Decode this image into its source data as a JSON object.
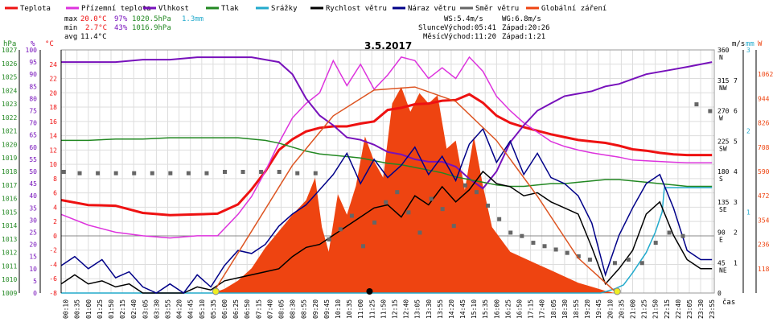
{
  "title": "3.5.2017",
  "legend": [
    {
      "label": "Teplota",
      "color": "#ee1111"
    },
    {
      "label": "Přízemní teplota",
      "color": "#dd33dd"
    },
    {
      "label": "Vlhkost",
      "color": "#7711bb"
    },
    {
      "label": "Tlak",
      "color": "#228822"
    },
    {
      "label": "Srážky",
      "color": "#22aacc"
    },
    {
      "label": "Rychlost větru",
      "color": "#000000"
    },
    {
      "label": "Náraz větru",
      "color": "#000088"
    },
    {
      "label": "Směr větru",
      "color": "#666666"
    },
    {
      "label": "Globální záření",
      "color": "#ee4411"
    }
  ],
  "stats": {
    "max": {
      "label": "max",
      "temp": "20.0°C",
      "hum": "97%",
      "pres": "1020.5hPa",
      "rain": "1.3mm"
    },
    "min": {
      "label": "min",
      "temp": "2.7°C",
      "hum": "43%",
      "pres": "1016.9hPa"
    },
    "avg": {
      "label": "avg",
      "temp": "11.4°C"
    }
  },
  "wind_info": {
    "ws": "WS:5.4m/s",
    "wg": "WG:6.8m/s"
  },
  "sun": {
    "label": "Slunce",
    "rise": "Východ:05:41",
    "set": "Západ:20:26"
  },
  "moon": {
    "label": "Měsíc",
    "rise": "Východ:11:20",
    "set": "Západ:1:21"
  },
  "axis_units": {
    "hpa": "hPa",
    "pct": "%",
    "degc": "°C",
    "ms": "m/s",
    "mm": "mm",
    "w": "W",
    "cas": "čas"
  },
  "colors": {
    "pressure": "#228822",
    "humidity": "#7711bb",
    "temp": "#ee1111",
    "rain": "#22aacc",
    "rad": "#ee4411",
    "wind": "#000000",
    "gust": "#000088",
    "dir": "#666666",
    "grid": "#dddddd",
    "zero": "#888888"
  },
  "chart_data": {
    "type": "line",
    "x_start": "00:00",
    "x_end": "24:00",
    "x_tick_labels": [
      "00:10",
      "00:35",
      "01:00",
      "01:25",
      "01:50",
      "02:15",
      "02:40",
      "03:05",
      "03:30",
      "03:55",
      "04:20",
      "04:45",
      "05:10",
      "05:35",
      "06:00",
      "06:25",
      "06:50",
      "07:15",
      "07:40",
      "08:05",
      "08:30",
      "08:55",
      "09:20",
      "09:45",
      "10:10",
      "10:35",
      "11:00",
      "11:25",
      "11:50",
      "12:15",
      "12:40",
      "13:05",
      "13:30",
      "13:55",
      "14:20",
      "14:45",
      "15:10",
      "15:35",
      "16:00",
      "16:25",
      "16:50",
      "17:15",
      "17:40",
      "18:05",
      "18:30",
      "18:55",
      "19:20",
      "19:45",
      "20:10",
      "20:35",
      "21:00",
      "21:25",
      "21:50",
      "22:15",
      "22:40",
      "23:05",
      "23:30",
      "23:55"
    ],
    "y_axes": {
      "pressure_hpa": {
        "min": 1009,
        "max": 1027,
        "ticks": [
          1009,
          1010,
          1011,
          1012,
          1013,
          1014,
          1015,
          1016,
          1017,
          1018,
          1019,
          1020,
          1021,
          1022,
          1023,
          1024,
          1025,
          1026,
          1027
        ]
      },
      "humidity_pct": {
        "min": 0,
        "max": 100,
        "ticks": [
          0,
          5,
          10,
          15,
          20,
          25,
          30,
          35,
          40,
          45,
          50,
          55,
          60,
          65,
          70,
          75,
          80,
          85,
          90,
          95,
          100
        ]
      },
      "temperature_c": {
        "min": -8,
        "max": 26,
        "ticks": [
          -8,
          -6,
          -4,
          -2,
          0,
          2,
          4,
          6,
          8,
          10,
          12,
          14,
          16,
          18,
          20,
          22,
          24
        ]
      },
      "wind_dir": {
        "min": 0,
        "max": 360,
        "ticks": [
          {
            "v": 0,
            "l": "0"
          },
          {
            "v": 45,
            "l": "45 NE"
          },
          {
            "v": 90,
            "l": "90 E"
          },
          {
            "v": 135,
            "l": "135 SE"
          },
          {
            "v": 180,
            "l": "180 S"
          },
          {
            "v": 225,
            "l": "225 SW"
          },
          {
            "v": 270,
            "l": "270 W"
          },
          {
            "v": 315,
            "l": "315 NW"
          },
          {
            "v": 360,
            "l": "360 N"
          }
        ]
      },
      "wind_ms": {
        "min": 0,
        "max": 8,
        "ticks": [
          1,
          2,
          3,
          4,
          5,
          6,
          7
        ]
      },
      "rain_mm": {
        "min": 0,
        "max": 3,
        "ticks": [
          1,
          2,
          3
        ]
      },
      "radiation_w": {
        "min": 0,
        "max": 1180,
        "ticks": [
          118,
          236,
          354,
          472,
          590,
          708,
          826,
          944,
          1062
        ]
      }
    },
    "series": [
      {
        "name": "Teplota",
        "axis": "temperature_c",
        "x": [
          "00:00",
          "01:00",
          "02:00",
          "03:00",
          "04:00",
          "05:00",
          "05:45",
          "06:30",
          "07:00",
          "07:30",
          "08:00",
          "08:30",
          "09:00",
          "09:30",
          "10:00",
          "10:30",
          "11:00",
          "11:30",
          "12:00",
          "12:30",
          "13:00",
          "13:30",
          "14:00",
          "14:30",
          "15:00",
          "15:30",
          "16:00",
          "16:30",
          "17:00",
          "17:30",
          "18:00",
          "18:30",
          "19:00",
          "19:30",
          "20:00",
          "20:30",
          "21:00",
          "21:30",
          "22:00",
          "22:30",
          "23:00",
          "23:55"
        ],
        "y": [
          5.0,
          4.3,
          4.2,
          3.2,
          2.9,
          3.0,
          3.1,
          4.4,
          6.5,
          9.0,
          12.0,
          13.5,
          14.6,
          15.1,
          15.3,
          15.3,
          15.7,
          16.0,
          17.6,
          17.9,
          18.4,
          18.5,
          18.9,
          19.0,
          19.8,
          18.6,
          16.8,
          15.8,
          15.2,
          14.7,
          14.2,
          13.8,
          13.4,
          13.2,
          13.0,
          12.6,
          12.1,
          11.9,
          11.6,
          11.4,
          11.3,
          11.3
        ]
      },
      {
        "name": "Přízemní teplota",
        "axis": "temperature_c",
        "x": [
          "00:00",
          "01:00",
          "02:00",
          "03:00",
          "04:00",
          "05:00",
          "05:45",
          "06:30",
          "07:00",
          "07:30",
          "08:00",
          "08:30",
          "09:00",
          "09:30",
          "10:00",
          "10:30",
          "11:00",
          "11:30",
          "12:00",
          "12:30",
          "13:00",
          "13:30",
          "14:00",
          "14:30",
          "15:00",
          "15:30",
          "16:00",
          "16:30",
          "17:00",
          "17:30",
          "18:00",
          "18:30",
          "19:00",
          "19:30",
          "20:00",
          "20:30",
          "21:00",
          "21:30",
          "22:00",
          "22:30",
          "23:00",
          "23:55"
        ],
        "y": [
          3.0,
          1.5,
          0.5,
          0.0,
          -0.3,
          0.0,
          0.0,
          3.0,
          5.5,
          9.0,
          13.0,
          16.5,
          18.5,
          20.0,
          24.5,
          21.0,
          24.0,
          20.5,
          22.5,
          25.0,
          24.5,
          22.0,
          23.5,
          22.0,
          25.0,
          23.0,
          19.5,
          17.5,
          15.8,
          14.5,
          13.2,
          12.5,
          12.0,
          11.6,
          11.3,
          11.0,
          10.6,
          10.5,
          10.4,
          10.3,
          10.2,
          10.2
        ]
      },
      {
        "name": "Vlhkost",
        "axis": "humidity_pct",
        "x": [
          "00:00",
          "01:00",
          "02:00",
          "03:00",
          "04:00",
          "05:00",
          "05:45",
          "06:30",
          "07:00",
          "07:30",
          "08:00",
          "08:30",
          "09:00",
          "09:30",
          "10:00",
          "10:30",
          "11:00",
          "11:30",
          "12:00",
          "12:30",
          "13:00",
          "13:30",
          "14:00",
          "14:30",
          "15:00",
          "15:30",
          "16:00",
          "16:30",
          "17:00",
          "17:30",
          "18:00",
          "18:30",
          "19:00",
          "19:30",
          "20:00",
          "20:30",
          "21:00",
          "21:30",
          "22:00",
          "22:30",
          "23:00",
          "23:55"
        ],
        "y": [
          95,
          95,
          95,
          96,
          96,
          97,
          97,
          97,
          97,
          96,
          95,
          90,
          80,
          73,
          69,
          64,
          63,
          61,
          58,
          57,
          55,
          54,
          54,
          52,
          47,
          43,
          50,
          62,
          69,
          75,
          78,
          81,
          82,
          83,
          85,
          86,
          88,
          90,
          91,
          92,
          93,
          95
        ]
      },
      {
        "name": "Tlak",
        "axis": "pressure_hpa",
        "x": [
          "00:00",
          "01:00",
          "02:00",
          "03:00",
          "04:00",
          "05:00",
          "05:45",
          "06:30",
          "07:00",
          "07:30",
          "08:00",
          "08:30",
          "09:00",
          "09:30",
          "10:00",
          "10:30",
          "11:00",
          "11:30",
          "12:00",
          "12:30",
          "13:00",
          "13:30",
          "14:00",
          "14:30",
          "15:00",
          "15:30",
          "16:00",
          "16:30",
          "17:00",
          "17:30",
          "18:00",
          "18:30",
          "19:00",
          "19:30",
          "20:00",
          "20:30",
          "21:00",
          "21:30",
          "22:00",
          "22:30",
          "23:00",
          "23:55"
        ],
        "y": [
          1020.3,
          1020.3,
          1020.4,
          1020.4,
          1020.5,
          1020.5,
          1020.5,
          1020.5,
          1020.4,
          1020.3,
          1020.1,
          1019.8,
          1019.5,
          1019.3,
          1019.2,
          1019.1,
          1019.0,
          1018.8,
          1018.6,
          1018.5,
          1018.3,
          1018.1,
          1017.9,
          1017.6,
          1017.4,
          1017.2,
          1017.0,
          1016.9,
          1016.9,
          1017.0,
          1017.1,
          1017.1,
          1017.2,
          1017.3,
          1017.4,
          1017.4,
          1017.3,
          1017.2,
          1017.1,
          1017.0,
          1016.9,
          1016.9
        ]
      },
      {
        "name": "Srážky",
        "axis": "rain_mm",
        "x": [
          "00:00",
          "19:50",
          "20:20",
          "20:40",
          "21:00",
          "21:30",
          "21:50",
          "22:05",
          "22:10",
          "23:55"
        ],
        "y": [
          0,
          0,
          0.05,
          0.1,
          0.25,
          0.5,
          0.75,
          1.0,
          1.3,
          1.3
        ]
      },
      {
        "name": "Rychlost větru",
        "axis": "wind_ms",
        "x": [
          "00:00",
          "00:30",
          "01:00",
          "01:30",
          "02:00",
          "02:30",
          "03:00",
          "03:30",
          "04:00",
          "04:30",
          "05:00",
          "05:30",
          "06:00",
          "06:30",
          "07:00",
          "07:30",
          "08:00",
          "08:30",
          "09:00",
          "09:30",
          "10:00",
          "10:30",
          "11:00",
          "11:30",
          "12:00",
          "12:30",
          "13:00",
          "13:30",
          "14:00",
          "14:30",
          "15:00",
          "15:30",
          "16:00",
          "16:30",
          "17:00",
          "17:30",
          "18:00",
          "18:30",
          "19:00",
          "19:30",
          "20:00",
          "20:30",
          "21:00",
          "21:30",
          "22:00",
          "22:30",
          "23:00",
          "23:30",
          "23:55"
        ],
        "y": [
          0.3,
          0.6,
          0.3,
          0.4,
          0.2,
          0.3,
          0.0,
          0.0,
          0.0,
          0.0,
          0.2,
          0.1,
          0.4,
          0.5,
          0.6,
          0.7,
          0.8,
          1.2,
          1.5,
          1.6,
          1.9,
          2.2,
          2.5,
          2.8,
          2.9,
          2.5,
          3.2,
          2.9,
          3.5,
          3.0,
          3.4,
          4.0,
          3.6,
          3.5,
          3.2,
          3.3,
          3.0,
          2.8,
          2.6,
          1.5,
          0.3,
          0.8,
          1.4,
          2.6,
          3.0,
          1.9,
          1.1,
          0.8,
          0.8
        ]
      },
      {
        "name": "Náraz větru",
        "axis": "wind_ms",
        "x": [
          "00:00",
          "00:30",
          "01:00",
          "01:30",
          "02:00",
          "02:30",
          "03:00",
          "03:30",
          "04:00",
          "04:30",
          "05:00",
          "05:30",
          "06:00",
          "06:30",
          "07:00",
          "07:30",
          "08:00",
          "08:30",
          "09:00",
          "09:30",
          "10:00",
          "10:30",
          "11:00",
          "11:30",
          "12:00",
          "12:30",
          "13:00",
          "13:30",
          "14:00",
          "14:30",
          "15:00",
          "15:30",
          "16:00",
          "16:30",
          "17:00",
          "17:30",
          "18:00",
          "18:30",
          "19:00",
          "19:30",
          "20:00",
          "20:30",
          "21:00",
          "21:30",
          "22:00",
          "22:30",
          "23:00",
          "23:30",
          "23:55"
        ],
        "y": [
          0.9,
          1.2,
          0.8,
          1.1,
          0.5,
          0.7,
          0.2,
          0.0,
          0.3,
          0.0,
          0.6,
          0.2,
          0.9,
          1.4,
          1.3,
          1.6,
          2.2,
          2.6,
          2.9,
          3.4,
          3.9,
          4.6,
          3.6,
          4.4,
          3.8,
          4.2,
          4.8,
          3.9,
          4.5,
          3.7,
          4.9,
          5.4,
          4.3,
          5.0,
          3.9,
          4.6,
          3.8,
          3.6,
          3.2,
          2.3,
          0.6,
          1.9,
          2.8,
          3.6,
          3.9,
          2.8,
          1.4,
          1.1,
          1.1
        ]
      },
      {
        "name": "Směr větru",
        "axis": "wind_dir",
        "type": "scatter",
        "x": [
          "00:05",
          "00:40",
          "01:20",
          "02:00",
          "02:40",
          "03:20",
          "04:00",
          "04:40",
          "05:20",
          "06:00",
          "06:40",
          "07:20",
          "08:00",
          "08:40",
          "09:20",
          "09:50",
          "10:15",
          "10:40",
          "11:05",
          "11:30",
          "11:55",
          "12:20",
          "12:45",
          "13:10",
          "13:35",
          "14:00",
          "14:25",
          "14:50",
          "15:15",
          "15:40",
          "16:05",
          "16:30",
          "16:55",
          "17:20",
          "17:45",
          "18:10",
          "18:35",
          "19:00",
          "19:25",
          "20:20",
          "20:50",
          "21:20",
          "21:50",
          "22:20",
          "22:50",
          "23:20",
          "23:50"
        ],
        "y": [
          180,
          178,
          178,
          178,
          178,
          178,
          178,
          178,
          178,
          180,
          180,
          180,
          180,
          178,
          178,
          80,
          95,
          115,
          70,
          105,
          135,
          150,
          120,
          90,
          140,
          125,
          100,
          160,
          150,
          130,
          110,
          90,
          85,
          75,
          70,
          65,
          60,
          55,
          50,
          45,
          50,
          45,
          75,
          90,
          85,
          280,
          270
        ]
      },
      {
        "name": "Globální záření",
        "axis": "radiation_w",
        "type": "area",
        "x": [
          "05:35",
          "06:00",
          "06:30",
          "07:00",
          "07:30",
          "08:00",
          "08:30",
          "09:00",
          "09:20",
          "09:35",
          "09:50",
          "10:10",
          "10:30",
          "10:50",
          "11:10",
          "11:30",
          "11:50",
          "12:10",
          "12:30",
          "12:50",
          "13:10",
          "13:30",
          "13:50",
          "14:10",
          "14:30",
          "14:50",
          "15:10",
          "15:30",
          "15:50",
          "16:10",
          "16:30",
          "17:00",
          "17:30",
          "18:00",
          "18:30",
          "19:00",
          "19:30",
          "20:00",
          "20:20"
        ],
        "y": [
          0,
          20,
          60,
          120,
          220,
          300,
          380,
          450,
          560,
          320,
          200,
          480,
          380,
          520,
          760,
          640,
          560,
          920,
          1000,
          880,
          970,
          920,
          960,
          700,
          740,
          500,
          760,
          520,
          320,
          260,
          200,
          170,
          140,
          110,
          80,
          50,
          30,
          10,
          0
        ]
      }
    ],
    "clear_sky_radiation": {
      "name": "clear-sky",
      "x": [
        "05:35",
        "07:00",
        "08:30",
        "10:00",
        "11:30",
        "13:00",
        "14:30",
        "16:00",
        "17:30",
        "19:00",
        "20:25"
      ],
      "y": [
        0,
        300,
        620,
        860,
        985,
        1000,
        930,
        740,
        470,
        170,
        0
      ]
    }
  }
}
